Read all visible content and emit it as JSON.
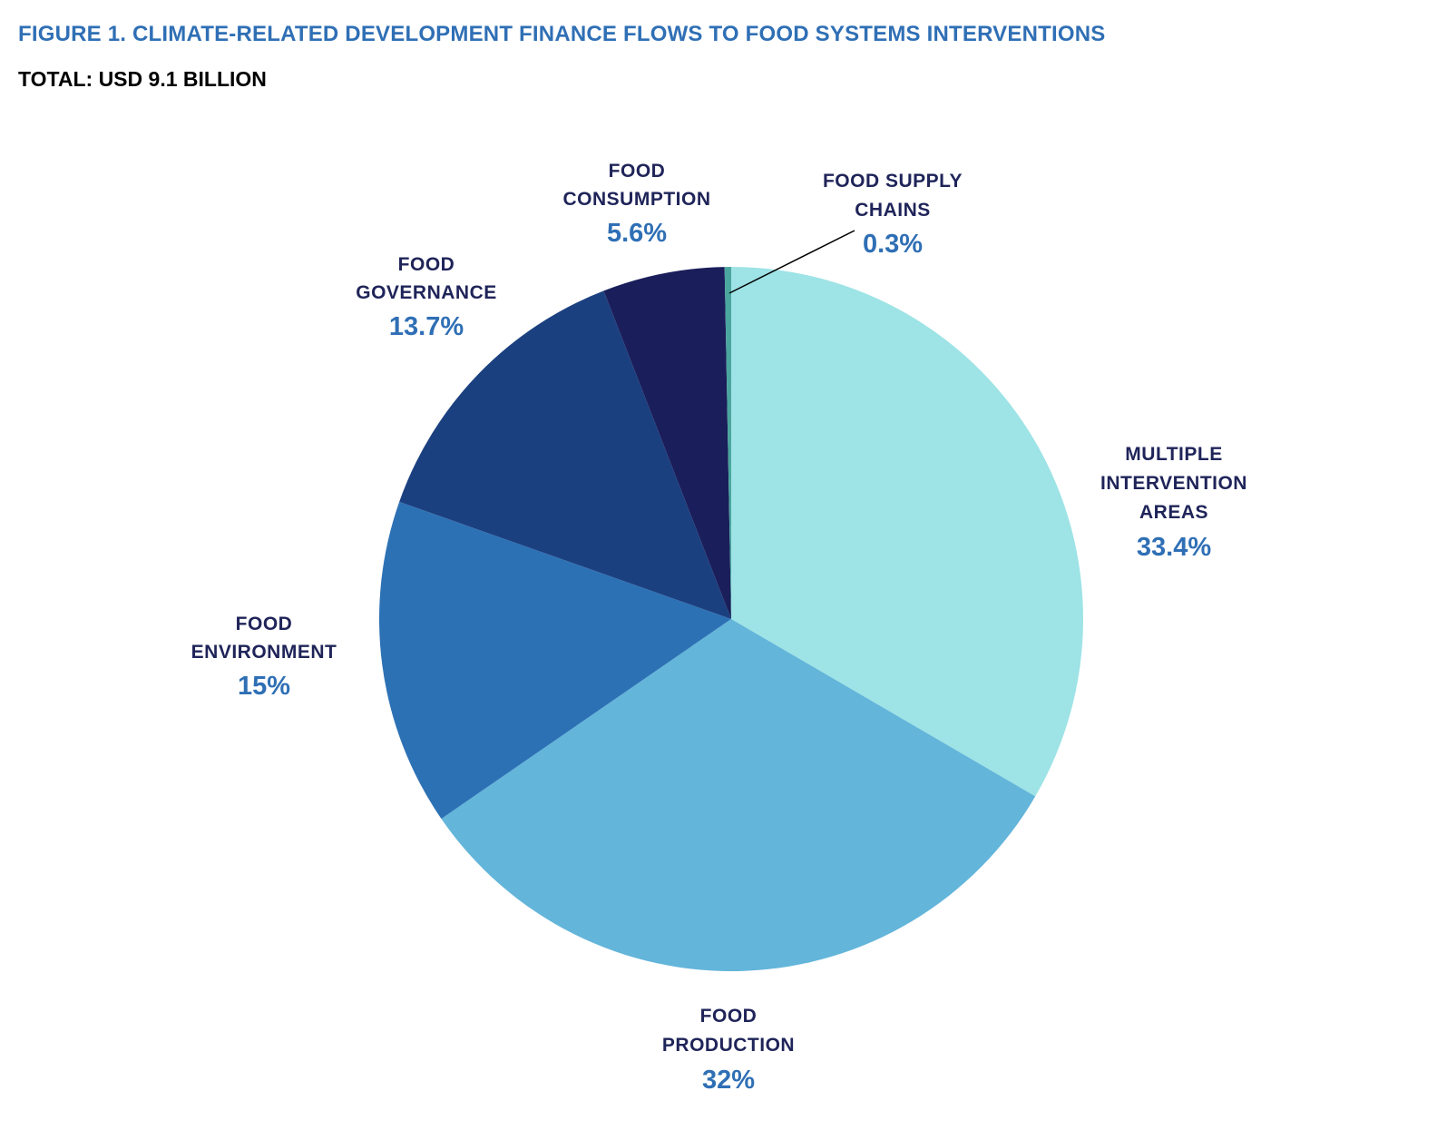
{
  "chart_data": {
    "type": "pie",
    "title": "FIGURE 1. CLIMATE-RELATED DEVELOPMENT FINANCE FLOWS TO FOOD SYSTEMS INTERVENTIONS",
    "subtitle": "TOTAL: USD 9.1 BILLION",
    "start": "top, clockwise",
    "slices": [
      {
        "label": [
          "MULTIPLE",
          "INTERVENTION",
          "AREAS"
        ],
        "value": 33.4,
        "pct_label": "33.4%",
        "color": "#9ee3e6"
      },
      {
        "label": [
          "FOOD",
          "PRODUCTION"
        ],
        "value": 32,
        "pct_label": "32%",
        "color": "#63b5da"
      },
      {
        "label": [
          "FOOD",
          "ENVIRONMENT"
        ],
        "value": 15,
        "pct_label": "15%",
        "color": "#2d71b5"
      },
      {
        "label": [
          "FOOD",
          "GOVERNANCE"
        ],
        "value": 13.7,
        "pct_label": "13.7%",
        "color": "#1b4080"
      },
      {
        "label": [
          "FOOD",
          "CONSUMPTION"
        ],
        "value": 5.6,
        "pct_label": "5.6%",
        "color": "#1a1e5a"
      },
      {
        "label": [
          "FOOD SUPPLY",
          "CHAINS"
        ],
        "value": 0.3,
        "pct_label": "0.3%",
        "color": "#4aa69e"
      }
    ]
  }
}
